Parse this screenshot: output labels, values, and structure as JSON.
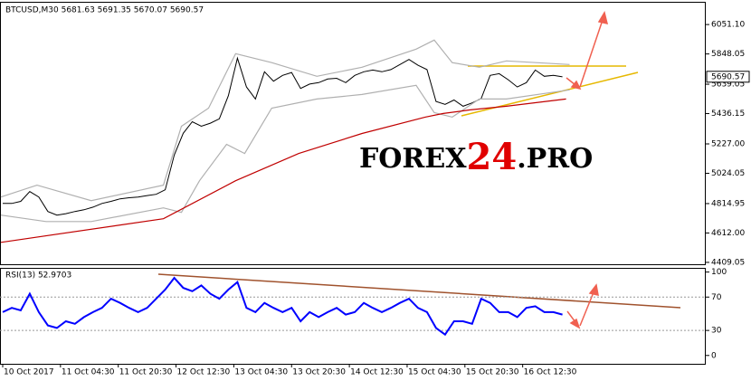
{
  "chart_data": [
    {
      "type": "line",
      "title": "BTCUSD,M30  5681.63 5691.35 5670.07 5690.57",
      "watermark": [
        "FOREX",
        "24",
        ".PRO"
      ],
      "last_price": 5690.57,
      "xlim": [
        11.75,
        207.2
      ],
      "ylim": [
        4396,
        6208
      ],
      "yticks": [
        {
          "value": 6051.1,
          "label": "6051.10"
        },
        5848.05,
        5639.05,
        5436.15,
        {
          "value": 5227,
          "label": "5227.00"
        },
        5024.05,
        4814.95,
        {
          "value": 4612,
          "label": "4612.00"
        },
        4409.05
      ],
      "series": [
        {
          "color": "#000000",
          "x": [
            12.5,
            15,
            17.5,
            20,
            22.5,
            25,
            27.5,
            30,
            32.5,
            35,
            37.5,
            40,
            42.5,
            45,
            47.5,
            50,
            52.5,
            55,
            57.5,
            60,
            62.5,
            65,
            67.5,
            70,
            72.5,
            75,
            77.5,
            80,
            82.5,
            85,
            87.5,
            90,
            92.5,
            95,
            97.5,
            100,
            102.5,
            105,
            107.5,
            110,
            112.5,
            115,
            117.5,
            120,
            122.5,
            125,
            127.5,
            130,
            132.5,
            135,
            137.5,
            140,
            142.5,
            145,
            147.5,
            150,
            152.5,
            155,
            157.5,
            160,
            162.5,
            165,
            167.5
          ],
          "values": [
            4816,
            4816,
            4830,
            4898,
            4860,
            4760,
            4735,
            4745,
            4760,
            4772,
            4790,
            4816,
            4830,
            4848,
            4855,
            4860,
            4870,
            4879,
            4910,
            5150,
            5300,
            5380,
            5349,
            5370,
            5400,
            5560,
            5819,
            5620,
            5537,
            5725,
            5660,
            5700,
            5720,
            5610,
            5640,
            5650,
            5675,
            5680,
            5650,
            5700,
            5725,
            5737,
            5725,
            5740,
            5775,
            5810,
            5770,
            5740,
            5520,
            5500,
            5530,
            5487,
            5510,
            5540,
            5700,
            5712,
            5670,
            5620,
            5650,
            5737,
            5694,
            5700,
            5690
          ]
        },
        {
          "color": "#b0b0b0",
          "x": [
            12,
            22,
            37,
            57,
            62,
            69.5,
            77,
            87,
            99.5,
            112,
            127,
            132,
            137,
            144.5,
            152,
            169.5
          ],
          "values": [
            4860,
            4942,
            4835,
            4942,
            5349,
            5474,
            5850,
            5788,
            5694,
            5756,
            5881,
            5944,
            5788,
            5756,
            5800,
            5775
          ]
        },
        {
          "color": "#b0b0b0",
          "x": [
            12,
            24.5,
            37,
            57,
            62,
            67,
            74.5,
            79.5,
            87,
            99.5,
            112,
            127,
            132,
            137,
            144.5,
            152,
            169.5
          ],
          "values": [
            4735,
            4691,
            4691,
            4785,
            4754,
            4973,
            5224,
            5161,
            5474,
            5537,
            5568,
            5631,
            5443,
            5412,
            5537,
            5537,
            5600
          ]
        },
        {
          "color": "#c00000",
          "x": [
            12,
            57,
            77,
            94.5,
            112,
            129.5,
            134.5,
            142,
            152,
            168.5
          ],
          "values": [
            4547,
            4710,
            4973,
            5161,
            5299,
            5412,
            5437,
            5462,
            5487,
            5537
          ]
        }
      ]
    },
    {
      "type": "line",
      "title": "RSI(13) 52.9703",
      "xlim": [
        11.75,
        207.2
      ],
      "ylim": [
        -10,
        105
      ],
      "yticks": [
        100,
        70,
        30,
        0
      ],
      "levels": [
        70,
        30
      ],
      "xticks": [
        {
          "value": 12.5,
          "label": "10 Oct 2017"
        },
        {
          "value": 28.5,
          "label": "11 Oct 04:30"
        },
        {
          "value": 44.5,
          "label": "11 Oct 20:30"
        },
        {
          "value": 60.5,
          "label": "12 Oct 12:30"
        },
        {
          "value": 76.5,
          "label": "13 Oct 04:30"
        },
        {
          "value": 92.5,
          "label": "13 Oct 20:30"
        },
        {
          "value": 108.5,
          "label": "14 Oct 12:30"
        },
        {
          "value": 124.5,
          "label": "15 Oct 04:30"
        },
        {
          "value": 140.5,
          "label": "15 Oct 20:30"
        },
        {
          "value": 156.5,
          "label": "16 Oct 12:30"
        }
      ],
      "series": [
        {
          "color": "#0000ff",
          "x": [
            12.5,
            15,
            17.5,
            20,
            22.5,
            25,
            27.5,
            30,
            32.5,
            35,
            37.5,
            40,
            42.5,
            45,
            47.5,
            50,
            52.5,
            55,
            57.5,
            60,
            62.5,
            65,
            67.5,
            70,
            72.5,
            75,
            77.5,
            80,
            82.5,
            85,
            87.5,
            90,
            92.5,
            95,
            97.5,
            100,
            102.5,
            105,
            107.5,
            110,
            112.5,
            115,
            117.5,
            120,
            122.5,
            125,
            127.5,
            130,
            132.5,
            135,
            137.5,
            140,
            142.5,
            145,
            147.5,
            150,
            152.5,
            155,
            157.5,
            160,
            162.5,
            165,
            167.5
          ],
          "values": [
            52,
            57,
            54,
            74,
            52,
            36,
            33,
            41,
            38,
            46,
            52,
            57,
            68,
            63,
            57,
            52,
            57,
            68,
            79,
            93,
            81,
            77,
            84,
            74,
            68,
            79,
            88,
            57,
            52,
            63,
            57,
            52,
            57,
            41,
            52,
            46,
            52,
            57,
            49,
            52,
            63,
            57,
            52,
            57,
            63,
            68,
            57,
            52,
            33,
            25,
            41,
            41,
            38,
            68,
            63,
            52,
            52,
            46,
            57,
            59,
            52,
            52,
            49
          ]
        }
      ]
    }
  ]
}
